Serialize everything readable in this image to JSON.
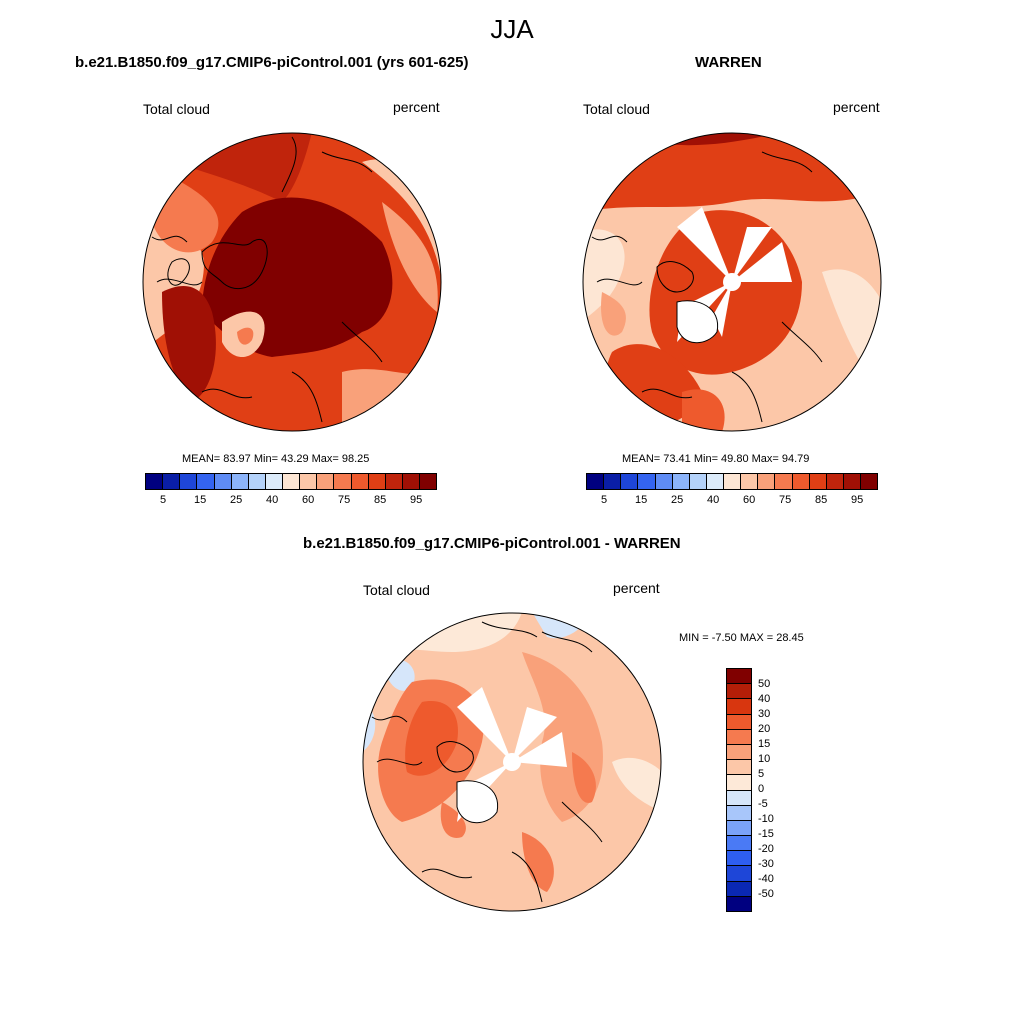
{
  "figure": {
    "title": "JJA",
    "panels": [
      {
        "title": "b.e21.B1850.f09_g17.CMIP6-piControl.001 (yrs 601-625)",
        "left_label": "Total cloud",
        "right_label": "percent",
        "stats": "MEAN=  83.97  Min=  43.29  Max=  98.25",
        "colorbar_ticks": [
          "5",
          "15",
          "25",
          "40",
          "60",
          "75",
          "85",
          "95"
        ]
      },
      {
        "title": "WARREN",
        "left_label": "Total cloud",
        "right_label": "percent",
        "stats": "MEAN=  73.41  Min=  49.80  Max=  94.79",
        "colorbar_ticks": [
          "5",
          "15",
          "25",
          "40",
          "60",
          "75",
          "85",
          "95"
        ]
      },
      {
        "title": "b.e21.B1850.f09_g17.CMIP6-piControl.001 - WARREN",
        "left_label": "Total cloud",
        "right_label": "percent",
        "stats": "MIN =  -7.50 MAX =  28.45",
        "colorbar_ticks": [
          "50",
          "40",
          "30",
          "20",
          "15",
          "10",
          "5",
          "0",
          "-5",
          "-10",
          "-15",
          "-20",
          "-30",
          "-40",
          "-50"
        ]
      }
    ]
  },
  "chart_data": [
    {
      "type": "heatmap",
      "projection": "north-polar-stereographic",
      "title": "b.e21.B1850.f09_g17.CMIP6-piControl.001 (yrs 601-625)",
      "variable": "Total cloud",
      "units": "percent",
      "mean": 83.97,
      "min": 43.29,
      "max": 98.25,
      "levels": [
        5,
        10,
        15,
        20,
        25,
        30,
        40,
        50,
        60,
        65,
        70,
        75,
        80,
        85,
        90,
        95
      ],
      "colors": [
        "#000080",
        "#0a1ea6",
        "#1e46d8",
        "#3464f0",
        "#5f8cf5",
        "#8cb4fa",
        "#b4d2fa",
        "#dcebfa",
        "#fde6d4",
        "#fcc7a8",
        "#f9a17a",
        "#f57a4f",
        "#ee5a2d",
        "#e03f15",
        "#c0240c",
        "#a01005",
        "#800000"
      ]
    },
    {
      "type": "heatmap",
      "projection": "north-polar-stereographic",
      "title": "WARREN",
      "variable": "Total cloud",
      "units": "percent",
      "mean": 73.41,
      "min": 49.8,
      "max": 94.79,
      "levels": [
        5,
        10,
        15,
        20,
        25,
        30,
        40,
        50,
        60,
        65,
        70,
        75,
        80,
        85,
        90,
        95
      ],
      "colors": [
        "#000080",
        "#0a1ea6",
        "#1e46d8",
        "#3464f0",
        "#5f8cf5",
        "#8cb4fa",
        "#b4d2fa",
        "#dcebfa",
        "#fde6d4",
        "#fcc7a8",
        "#f9a17a",
        "#f57a4f",
        "#ee5a2d",
        "#e03f15",
        "#c0240c",
        "#a01005",
        "#800000"
      ]
    },
    {
      "type": "heatmap",
      "projection": "north-polar-stereographic",
      "title": "b.e21.B1850.f09_g17.CMIP6-piControl.001 - WARREN",
      "variable": "Total cloud",
      "units": "percent",
      "min": -7.5,
      "max": 28.45,
      "levels": [
        -50,
        -40,
        -30,
        -20,
        -15,
        -10,
        -5,
        0,
        5,
        10,
        15,
        20,
        30,
        40,
        50
      ],
      "colors": [
        "#000080",
        "#0a28b4",
        "#1e46d8",
        "#2e5ef0",
        "#4a7af5",
        "#7aa2f8",
        "#a8c6fa",
        "#d6e6fa",
        "#fde9d8",
        "#fcc7a8",
        "#f9a17a",
        "#f57a4f",
        "#ee5a2d",
        "#d8360f",
        "#b41e08",
        "#800000"
      ]
    }
  ]
}
